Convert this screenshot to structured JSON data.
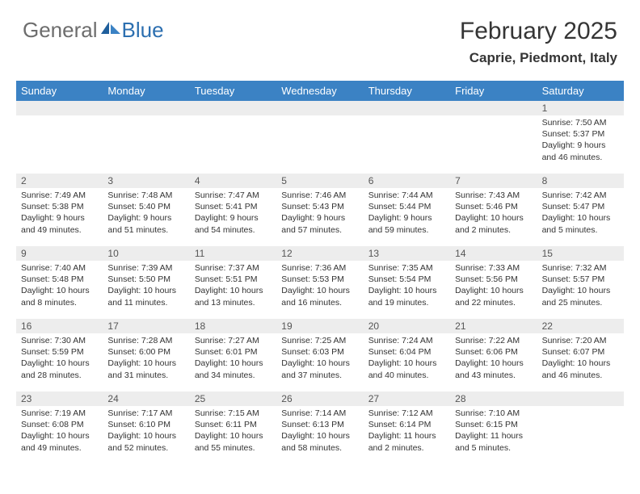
{
  "logo": {
    "general": "General",
    "blue": "Blue"
  },
  "title": "February 2025",
  "location": "Caprie, Piedmont, Italy",
  "colors": {
    "header_bg": "#3b82c4",
    "header_fg": "#ffffff",
    "daynum_bg": "#ededed",
    "text": "#333333",
    "logo_gray": "#6d6d6d",
    "logo_blue": "#2c6fb0"
  },
  "day_names": [
    "Sunday",
    "Monday",
    "Tuesday",
    "Wednesday",
    "Thursday",
    "Friday",
    "Saturday"
  ],
  "weeks": [
    {
      "nums": [
        "",
        "",
        "",
        "",
        "",
        "",
        "1"
      ],
      "cells": [
        "",
        "",
        "",
        "",
        "",
        "",
        "Sunrise: 7:50 AM\nSunset: 5:37 PM\nDaylight: 9 hours and 46 minutes."
      ]
    },
    {
      "nums": [
        "2",
        "3",
        "4",
        "5",
        "6",
        "7",
        "8"
      ],
      "cells": [
        "Sunrise: 7:49 AM\nSunset: 5:38 PM\nDaylight: 9 hours and 49 minutes.",
        "Sunrise: 7:48 AM\nSunset: 5:40 PM\nDaylight: 9 hours and 51 minutes.",
        "Sunrise: 7:47 AM\nSunset: 5:41 PM\nDaylight: 9 hours and 54 minutes.",
        "Sunrise: 7:46 AM\nSunset: 5:43 PM\nDaylight: 9 hours and 57 minutes.",
        "Sunrise: 7:44 AM\nSunset: 5:44 PM\nDaylight: 9 hours and 59 minutes.",
        "Sunrise: 7:43 AM\nSunset: 5:46 PM\nDaylight: 10 hours and 2 minutes.",
        "Sunrise: 7:42 AM\nSunset: 5:47 PM\nDaylight: 10 hours and 5 minutes."
      ]
    },
    {
      "nums": [
        "9",
        "10",
        "11",
        "12",
        "13",
        "14",
        "15"
      ],
      "cells": [
        "Sunrise: 7:40 AM\nSunset: 5:48 PM\nDaylight: 10 hours and 8 minutes.",
        "Sunrise: 7:39 AM\nSunset: 5:50 PM\nDaylight: 10 hours and 11 minutes.",
        "Sunrise: 7:37 AM\nSunset: 5:51 PM\nDaylight: 10 hours and 13 minutes.",
        "Sunrise: 7:36 AM\nSunset: 5:53 PM\nDaylight: 10 hours and 16 minutes.",
        "Sunrise: 7:35 AM\nSunset: 5:54 PM\nDaylight: 10 hours and 19 minutes.",
        "Sunrise: 7:33 AM\nSunset: 5:56 PM\nDaylight: 10 hours and 22 minutes.",
        "Sunrise: 7:32 AM\nSunset: 5:57 PM\nDaylight: 10 hours and 25 minutes."
      ]
    },
    {
      "nums": [
        "16",
        "17",
        "18",
        "19",
        "20",
        "21",
        "22"
      ],
      "cells": [
        "Sunrise: 7:30 AM\nSunset: 5:59 PM\nDaylight: 10 hours and 28 minutes.",
        "Sunrise: 7:28 AM\nSunset: 6:00 PM\nDaylight: 10 hours and 31 minutes.",
        "Sunrise: 7:27 AM\nSunset: 6:01 PM\nDaylight: 10 hours and 34 minutes.",
        "Sunrise: 7:25 AM\nSunset: 6:03 PM\nDaylight: 10 hours and 37 minutes.",
        "Sunrise: 7:24 AM\nSunset: 6:04 PM\nDaylight: 10 hours and 40 minutes.",
        "Sunrise: 7:22 AM\nSunset: 6:06 PM\nDaylight: 10 hours and 43 minutes.",
        "Sunrise: 7:20 AM\nSunset: 6:07 PM\nDaylight: 10 hours and 46 minutes."
      ]
    },
    {
      "nums": [
        "23",
        "24",
        "25",
        "26",
        "27",
        "28",
        ""
      ],
      "cells": [
        "Sunrise: 7:19 AM\nSunset: 6:08 PM\nDaylight: 10 hours and 49 minutes.",
        "Sunrise: 7:17 AM\nSunset: 6:10 PM\nDaylight: 10 hours and 52 minutes.",
        "Sunrise: 7:15 AM\nSunset: 6:11 PM\nDaylight: 10 hours and 55 minutes.",
        "Sunrise: 7:14 AM\nSunset: 6:13 PM\nDaylight: 10 hours and 58 minutes.",
        "Sunrise: 7:12 AM\nSunset: 6:14 PM\nDaylight: 11 hours and 2 minutes.",
        "Sunrise: 7:10 AM\nSunset: 6:15 PM\nDaylight: 11 hours and 5 minutes.",
        ""
      ]
    }
  ]
}
